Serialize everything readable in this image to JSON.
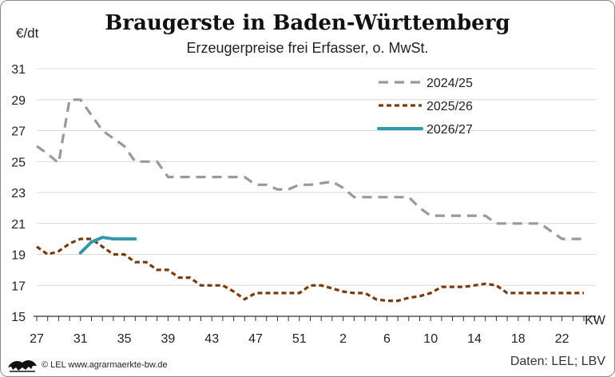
{
  "chart_data": {
    "type": "line",
    "title": "Braugerste in Baden-Württemberg",
    "subtitle": "Erzeugerpreise frei Erfasser, o. MwSt.",
    "ylabel": "€/dt",
    "xlabel": "KW",
    "ylim": [
      15,
      31
    ],
    "yticks": [
      15,
      17,
      19,
      21,
      23,
      25,
      27,
      29,
      31
    ],
    "xticks": [
      "27",
      "31",
      "35",
      "39",
      "43",
      "47",
      "51",
      "2",
      "6",
      "10",
      "14",
      "18",
      "22"
    ],
    "grid": "horizontal",
    "legend_position": "top-right",
    "x_start_week": "27",
    "series": [
      {
        "name": "2024/25",
        "color": "#999999",
        "style": "dashed",
        "values": [
          26.0,
          25.5,
          24.9,
          29.0,
          29.0,
          28.0,
          27.0,
          26.5,
          26.0,
          25.0,
          25.0,
          25.0,
          24.0,
          24.0,
          24.0,
          24.0,
          24.0,
          24.0,
          24.0,
          24.0,
          23.5,
          23.5,
          23.2,
          23.2,
          23.5,
          23.5,
          23.6,
          23.7,
          23.3,
          22.7,
          22.7,
          22.7,
          22.7,
          22.7,
          22.7,
          22.0,
          21.5,
          21.5,
          21.5,
          21.5,
          21.5,
          21.5,
          21.0,
          21.0,
          21.0,
          21.0,
          21.0,
          20.5,
          20.0,
          20.0,
          20.0
        ]
      },
      {
        "name": "2025/26",
        "color": "#7a3b0c",
        "style": "dotted",
        "values": [
          19.5,
          19.0,
          19.2,
          19.7,
          20.0,
          20.0,
          19.5,
          19.0,
          19.0,
          18.5,
          18.5,
          18.0,
          18.0,
          17.5,
          17.5,
          17.0,
          17.0,
          17.0,
          16.6,
          16.1,
          16.5,
          16.5,
          16.5,
          16.5,
          16.5,
          17.0,
          17.0,
          16.8,
          16.6,
          16.5,
          16.5,
          16.1,
          16.0,
          16.0,
          16.2,
          16.3,
          16.5,
          16.9,
          16.9,
          16.9,
          17.0,
          17.1,
          17.0,
          16.5,
          16.5,
          16.5,
          16.5,
          16.5,
          16.5,
          16.5,
          16.5
        ]
      },
      {
        "name": "2026/27",
        "color": "#3399aa",
        "style": "solid",
        "values": [
          null,
          null,
          null,
          null,
          19.1,
          19.8,
          20.1,
          20.0,
          20.0,
          20.0
        ]
      }
    ]
  },
  "footer": {
    "copyright": "© LEL www.agrarmaerkte-bw.de",
    "source": "Daten: LEL; LBV",
    "logo_icon": "lion-emblem-icon"
  }
}
